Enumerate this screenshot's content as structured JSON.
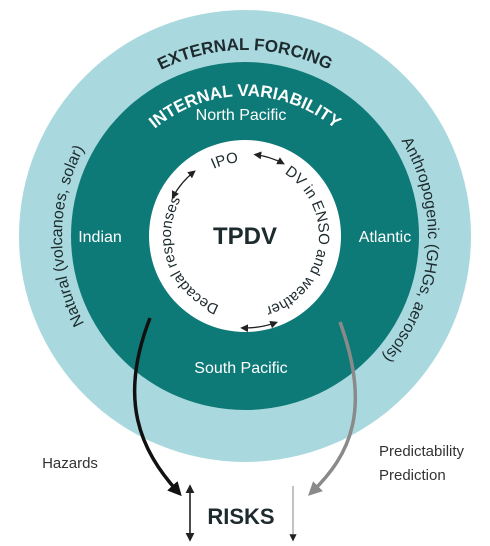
{
  "outer": {
    "title": "EXTERNAL FORCING",
    "left": "Natural (volcanoes, solar)",
    "right": "Anthropogenic (GHGs, aerosols)"
  },
  "middle": {
    "title": "INTERNAL VARIABILITY",
    "regions": [
      "North Pacific",
      "Atlantic",
      "South Pacific",
      "Indian"
    ]
  },
  "inner": {
    "title": "TPDV",
    "modes": [
      "IPO",
      "DV in ENSO and weather",
      "Decadal responses"
    ]
  },
  "outputs": {
    "left": "Hazards",
    "right": [
      "Predictability",
      "Prediction"
    ],
    "target": "RISKS"
  }
}
